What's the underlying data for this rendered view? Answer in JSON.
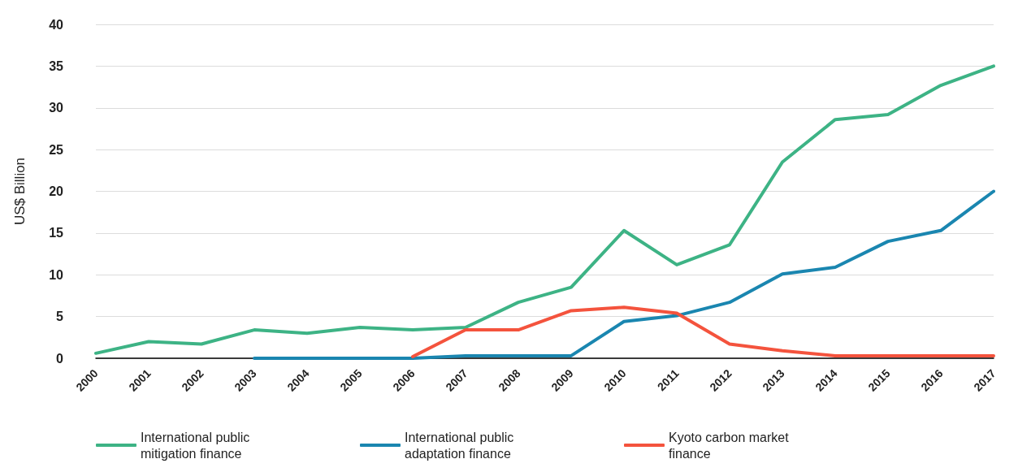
{
  "chart_data": {
    "type": "line",
    "ylabel": "US$ Billion",
    "categories": [
      "2000",
      "2001",
      "2002",
      "2003",
      "2004",
      "2005",
      "2006",
      "2007",
      "2008",
      "2009",
      "2010",
      "2011",
      "2012",
      "2013",
      "2014",
      "2015",
      "2016",
      "2017"
    ],
    "series": [
      {
        "name": "International public mitigation finance",
        "color": "#3db385",
        "values": [
          0.6,
          2.0,
          1.7,
          3.4,
          3.0,
          3.7,
          3.4,
          3.7,
          6.7,
          8.5,
          15.3,
          11.2,
          13.6,
          23.5,
          28.6,
          29.2,
          32.7,
          35.0
        ]
      },
      {
        "name": "International public adaptation finance",
        "color": "#1a86b0",
        "values": [
          null,
          null,
          null,
          0,
          0,
          0,
          0,
          0.3,
          0.3,
          0.3,
          4.4,
          5.1,
          6.7,
          10.1,
          10.9,
          14.0,
          15.3,
          20.0
        ]
      },
      {
        "name": "Kyoto carbon market finance",
        "color": "#f4533d",
        "values": [
          null,
          null,
          null,
          null,
          null,
          null,
          0.2,
          3.4,
          3.4,
          5.7,
          6.1,
          5.4,
          1.7,
          0.9,
          0.3,
          0.3,
          0.3,
          0.3
        ]
      }
    ],
    "ylim": [
      0,
      40
    ],
    "yticks": [
      0,
      5,
      10,
      15,
      20,
      25,
      30,
      35,
      40
    ],
    "grid": "y",
    "legend": "bottom",
    "marker": "none",
    "line_style": "solid"
  }
}
